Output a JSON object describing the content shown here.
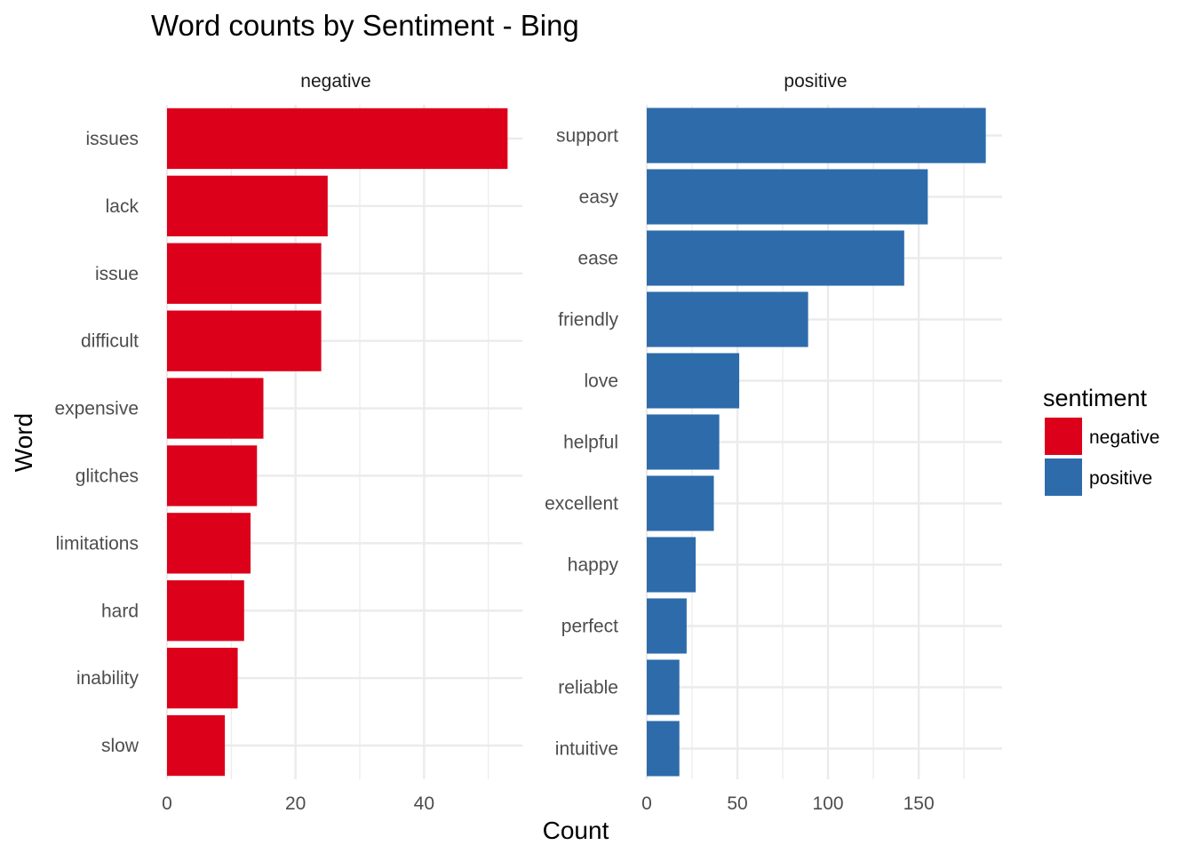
{
  "chart_data": {
    "type": "bar",
    "orientation": "horizontal",
    "title": "Word counts by Sentiment - Bing",
    "xlabel": "Count",
    "ylabel": "Word",
    "grid": true,
    "legend": {
      "title": "sentiment",
      "placement": "right",
      "entries": [
        {
          "label": "negative",
          "color": "#DC001A"
        },
        {
          "label": "positive",
          "color": "#2D6BAB"
        }
      ]
    },
    "facets": [
      {
        "name": "negative",
        "color": "#DC001A",
        "xlim": [
          0,
          55.3
        ],
        "ticks": [
          0,
          20,
          40
        ],
        "minor_ticks": [
          10,
          30,
          50
        ],
        "tick_labels": [
          "0",
          "20",
          "40"
        ],
        "categories": [
          "issues",
          "lack",
          "issue",
          "difficult",
          "expensive",
          "glitches",
          "limitations",
          "hard",
          "inability",
          "slow"
        ],
        "values": [
          53,
          25,
          24,
          24,
          15,
          14,
          13,
          12,
          11,
          9
        ]
      },
      {
        "name": "positive",
        "color": "#2D6BAB",
        "xlim": [
          0,
          196
        ],
        "ticks": [
          0,
          50,
          100,
          150
        ],
        "minor_ticks": [
          25,
          75,
          125,
          175
        ],
        "tick_labels": [
          "0",
          "50",
          "100",
          "150"
        ],
        "categories": [
          "support",
          "easy",
          "ease",
          "friendly",
          "love",
          "helpful",
          "excellent",
          "happy",
          "perfect",
          "reliable",
          "intuitive"
        ],
        "values": [
          187,
          155,
          142,
          89,
          51,
          40,
          37,
          27,
          22,
          18,
          18
        ]
      }
    ]
  }
}
